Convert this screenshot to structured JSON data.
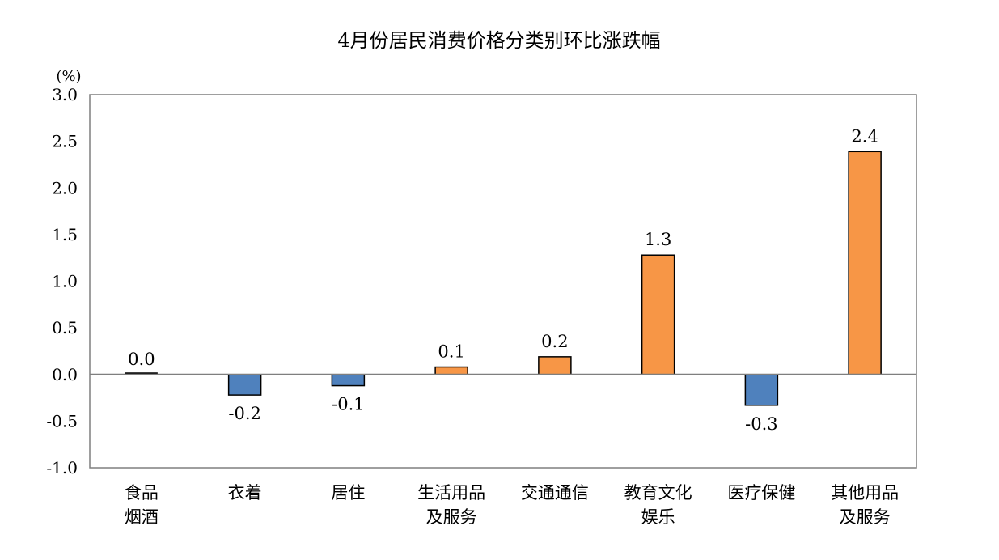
{
  "chart_data": {
    "type": "bar",
    "title": "4月份居民消费价格分类别环比涨跌幅",
    "ylabel": "(%)",
    "xlabel": "",
    "ylim": [
      -1.0,
      3.0
    ],
    "yticks": [
      "3.0",
      "2.5",
      "2.0",
      "1.5",
      "1.0",
      "0.5",
      "0.0",
      "-0.5",
      "-1.0"
    ],
    "ytick_values": [
      3.0,
      2.5,
      2.0,
      1.5,
      1.0,
      0.5,
      0.0,
      -0.5,
      -1.0
    ],
    "grid": false,
    "categories": [
      [
        "食品",
        "烟酒"
      ],
      [
        "衣着"
      ],
      [
        "居住"
      ],
      [
        "生活用品",
        "及服务"
      ],
      [
        "交通通信"
      ],
      [
        "教育文化",
        "娱乐"
      ],
      [
        "医疗保健"
      ],
      [
        "其他用品",
        "及服务"
      ]
    ],
    "values": [
      0.0,
      -0.2,
      -0.1,
      0.1,
      0.2,
      1.3,
      -0.3,
      2.4
    ],
    "bar_values": [
      0.0,
      -0.22,
      -0.12,
      0.08,
      0.19,
      1.28,
      -0.33,
      2.39
    ],
    "labels": [
      "0.0",
      "-0.2",
      "-0.1",
      "0.1",
      "0.2",
      "1.3",
      "-0.3",
      "2.4"
    ],
    "colors": {
      "positive": "#F79646",
      "negative": "#4F81BD",
      "axis": "#7F7F7F"
    }
  }
}
